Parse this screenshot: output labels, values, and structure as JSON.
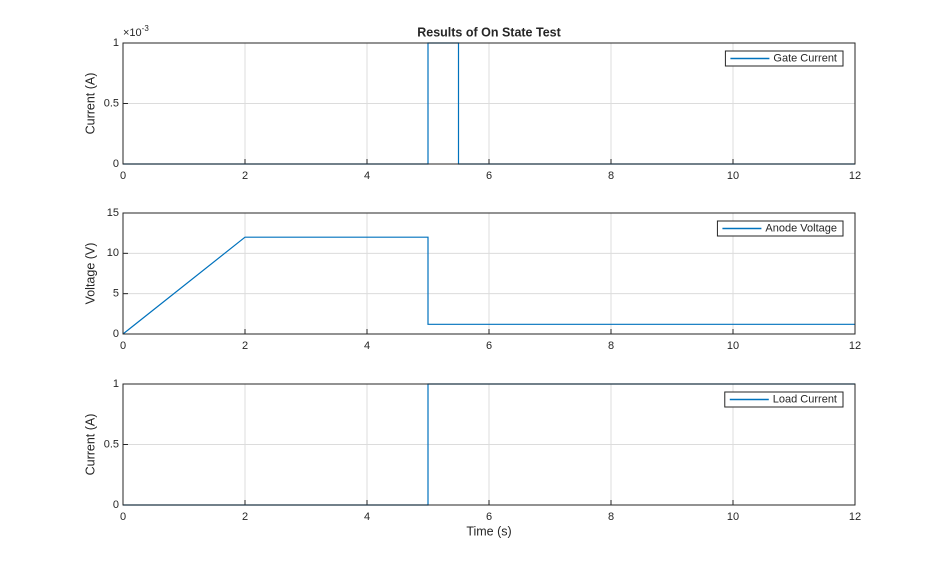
{
  "chart_data": [
    {
      "type": "line",
      "title": "Results of On State Test",
      "ylabel": "Current (A)",
      "y_multiplier": "×10",
      "y_multiplier_exponent": "-3",
      "x": [
        0,
        5,
        5,
        5.5,
        5.5,
        12
      ],
      "series": [
        {
          "name": "Gate Current",
          "color": "#0072bd",
          "values": [
            0,
            0,
            1,
            1,
            0,
            0
          ]
        }
      ],
      "xlim": [
        0,
        12
      ],
      "xticks": [
        0,
        2,
        4,
        6,
        8,
        10,
        12
      ],
      "ylim": [
        0,
        1
      ],
      "yticks": [
        0,
        0.5,
        1
      ],
      "grid": true,
      "legend": "upper right"
    },
    {
      "type": "line",
      "ylabel": "Voltage (V)",
      "x": [
        0,
        2,
        5,
        5,
        12
      ],
      "series": [
        {
          "name": "Anode Voltage",
          "color": "#0072bd",
          "values": [
            0,
            12,
            12,
            1.2,
            1.2
          ]
        }
      ],
      "xlim": [
        0,
        12
      ],
      "xticks": [
        0,
        2,
        4,
        6,
        8,
        10,
        12
      ],
      "ylim": [
        0,
        15
      ],
      "yticks": [
        0,
        5,
        10,
        15
      ],
      "grid": true,
      "legend": "upper right"
    },
    {
      "type": "line",
      "ylabel": "Current (A)",
      "xlabel": "Time (s)",
      "x": [
        0,
        5,
        5,
        12
      ],
      "series": [
        {
          "name": "Load Current",
          "color": "#0072bd",
          "values": [
            0,
            0,
            1,
            1
          ]
        }
      ],
      "xlim": [
        0,
        12
      ],
      "xticks": [
        0,
        2,
        4,
        6,
        8,
        10,
        12
      ],
      "ylim": [
        0,
        1
      ],
      "yticks": [
        0,
        0.5,
        1
      ],
      "grid": true,
      "legend": "upper right"
    }
  ]
}
